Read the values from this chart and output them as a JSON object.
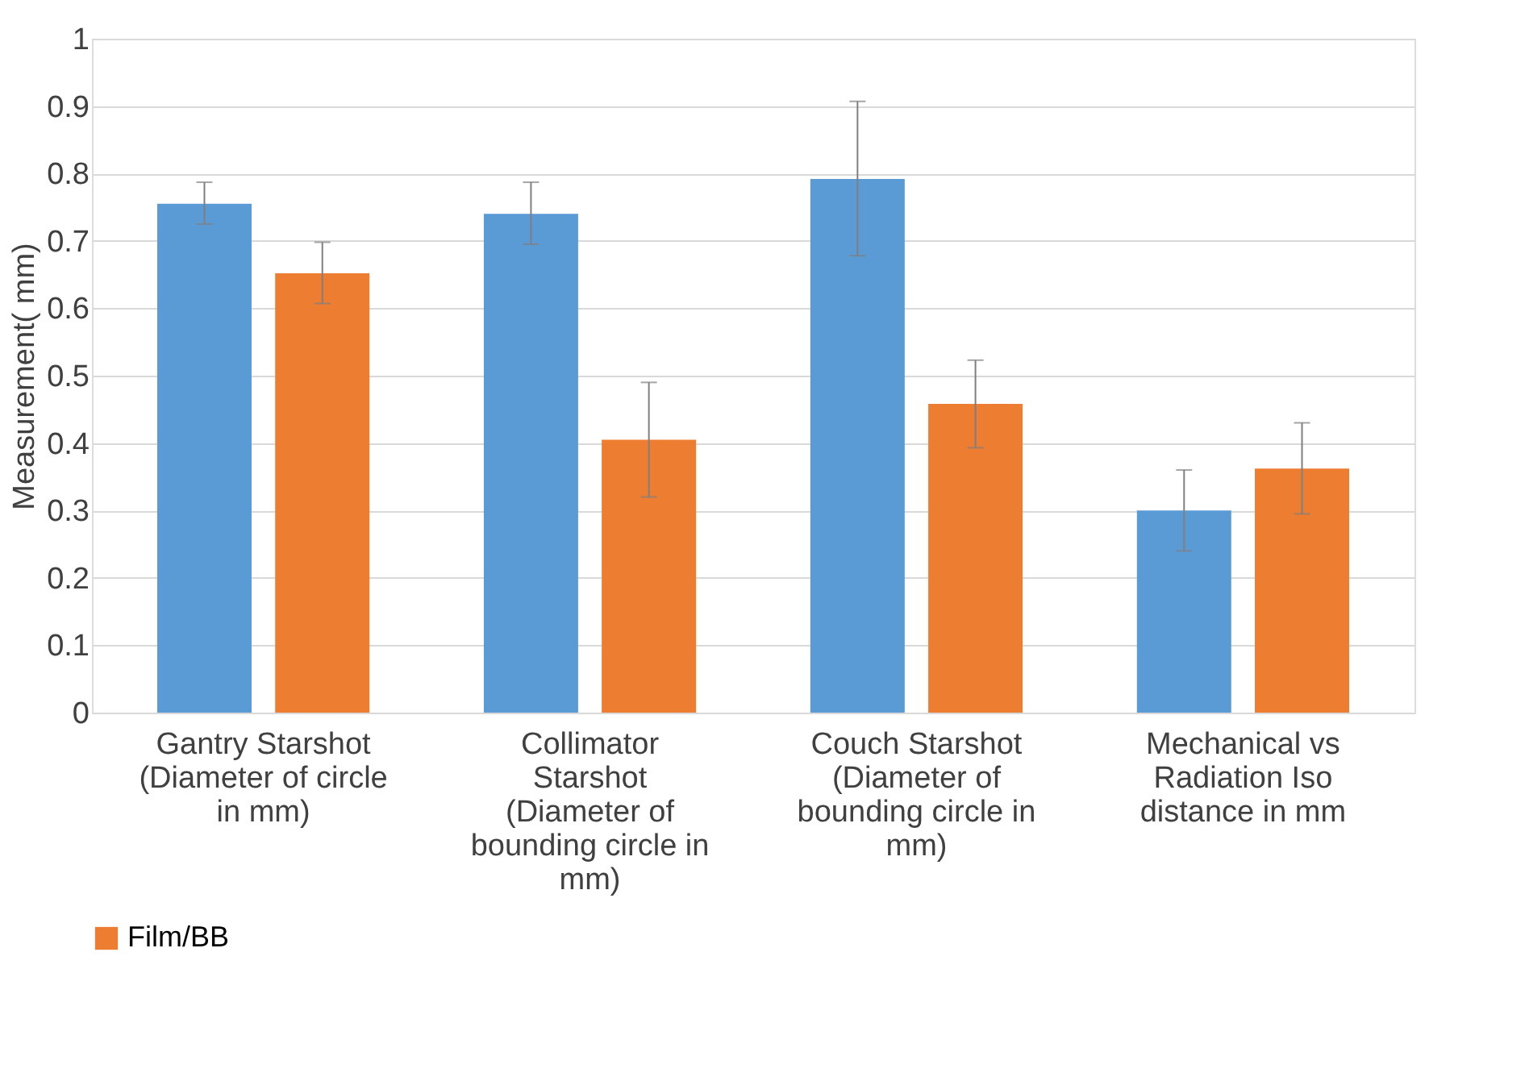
{
  "chart_data": {
    "type": "bar",
    "ylabel": "Measurement( mm)",
    "categories": [
      "Gantry Starshot\n(Diameter of circle\nin mm)",
      "Collimator\nStarshot\n(Diameter of\nbounding circle in\nmm)",
      "Couch Starshot\n(Diameter of\nbounding circle in\nmm)",
      "Mechanical vs\nRadiation Iso\ndistance in mm"
    ],
    "series": [
      {
        "color": "#5b9bd5",
        "values": [
          0.755,
          0.74,
          0.792,
          0.3
        ],
        "errors": [
          [
            0.725,
            0.787
          ],
          [
            0.695,
            0.787
          ],
          [
            0.678,
            0.907
          ],
          [
            0.24,
            0.36
          ]
        ]
      },
      {
        "name": "Film/BB",
        "color": "#ed7d31",
        "values": [
          0.652,
          0.405,
          0.458,
          0.362
        ],
        "errors": [
          [
            0.607,
            0.698
          ],
          [
            0.32,
            0.49
          ],
          [
            0.393,
            0.523
          ],
          [
            0.295,
            0.43
          ]
        ]
      }
    ],
    "ylim": [
      0,
      1
    ],
    "yticks": [
      0,
      0.1,
      0.2,
      0.3,
      0.4,
      0.5,
      0.6,
      0.7,
      0.8,
      0.9,
      1
    ],
    "grid": "y",
    "legend": "bottom"
  }
}
